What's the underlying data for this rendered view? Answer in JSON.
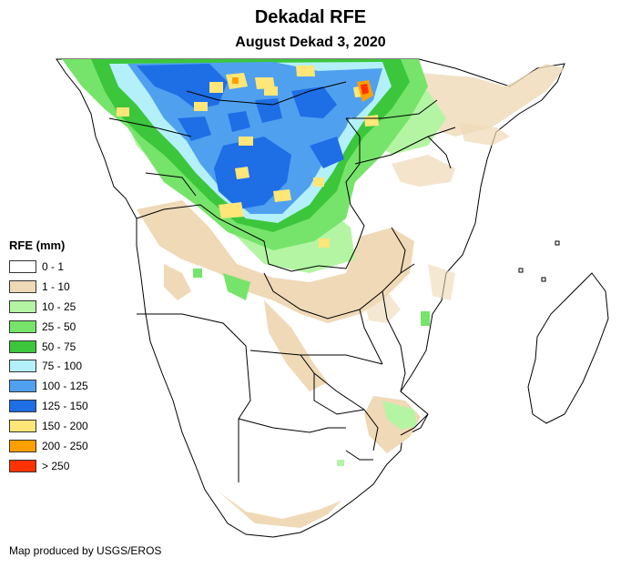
{
  "title": "Dekadal RFE",
  "subtitle": "August Dekad 3, 2020",
  "legend": {
    "title": "RFE (mm)",
    "items": [
      {
        "label": "0 - 1",
        "color": "#ffffff"
      },
      {
        "label": "1 - 10",
        "color": "#efd9b6"
      },
      {
        "label": "10 - 25",
        "color": "#b4f5a4"
      },
      {
        "label": "25 - 50",
        "color": "#76e46a"
      },
      {
        "label": "50 - 75",
        "color": "#3cc63c"
      },
      {
        "label": "75 - 100",
        "color": "#b4f0fa"
      },
      {
        "label": "100 - 125",
        "color": "#50a0f0"
      },
      {
        "label": "125 - 150",
        "color": "#1e6ee6"
      },
      {
        "label": "150 - 200",
        "color": "#ffe678"
      },
      {
        "label": "200 - 250",
        "color": "#ffa000"
      },
      {
        "label": "> 250",
        "color": "#ff3200"
      }
    ]
  },
  "credit": "Map produced by USGS/EROS",
  "colors": {
    "land": "#ffffff",
    "border": "#000000"
  }
}
